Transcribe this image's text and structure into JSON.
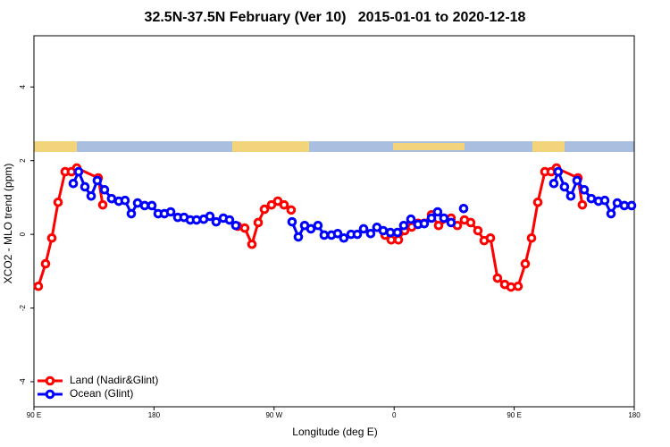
{
  "chart_data": {
    "type": "line",
    "title": "32.5N-37.5N February (Ver 10)   2015-01-01 to 2020-12-18",
    "x_label": "Longitude (deg E)",
    "y_label": "XCO2 - MLO trend (ppm)",
    "xlim": [
      90,
      540
    ],
    "ylim": [
      -4.68,
      5.39
    ],
    "xticks": [
      {
        "value": 90,
        "label": "90 E"
      },
      {
        "value": 180,
        "label": "180"
      },
      {
        "value": 270,
        "label": "90 W"
      },
      {
        "value": 360,
        "label": "0"
      },
      {
        "value": 450,
        "label": "90 E"
      },
      {
        "value": 540,
        "label": "180"
      }
    ],
    "yticks": [
      -4,
      -2,
      0,
      2,
      4
    ],
    "legend": "lower left",
    "series": [
      {
        "name": "Land (Nadir&Glint)",
        "color": "#ff0000",
        "x": [
          93.3,
          98.7,
          103.4,
          108.1,
          113.4,
          118.1,
          122.1,
          138.2,
          141.6,
          null,
          242.7,
          248,
          253.4,
          258.1,
          262.8,
          268.1,
          272.8,
          277.5,
          282.8,
          null,
          353.2,
          357.8,
          363.2,
          367.9,
          373.2,
          377.9,
          382.6,
          388,
          393.3,
          402.7,
          407.4,
          412.7,
          417.4,
          422.8,
          427.5,
          432.2,
          437.5,
          442.9,
          447.6,
          452.9,
          458.3,
          463,
          467.7,
          473,
          477.7,
          481.7,
          497.8,
          501.1
        ],
        "values": [
          -1.41,
          -0.8,
          -0.1,
          0.87,
          1.7,
          1.7,
          1.8,
          1.53,
          0.8,
          null,
          0.22,
          0.17,
          -0.27,
          0.32,
          0.68,
          0.8,
          0.9,
          0.8,
          0.66,
          null,
          -0.02,
          -0.15,
          -0.15,
          0.1,
          0.2,
          0.3,
          0.3,
          0.53,
          0.24,
          0.44,
          0.24,
          0.39,
          0.32,
          0.1,
          -0.17,
          -0.1,
          -1.19,
          -1.36,
          -1.43,
          -1.41,
          -0.8,
          -0.1,
          0.87,
          1.7,
          1.7,
          1.8,
          1.53,
          0.8
        ]
      },
      {
        "name": "Ocean (Glint)",
        "color": "#0000ff",
        "x": [
          119.5,
          123.5,
          128.2,
          132.9,
          137.5,
          142.9,
          148.2,
          153.6,
          158.3,
          163,
          167.7,
          173,
          178.4,
          183.1,
          187.8,
          192.5,
          197.8,
          202.5,
          207.2,
          211.9,
          217.2,
          221.9,
          226.6,
          232,
          236.6,
          241.3,
          null,
          283.5,
          288.2,
          292.9,
          297.6,
          302.9,
          307.6,
          313,
          317.7,
          322.3,
          327.7,
          332.4,
          337.1,
          342.4,
          347.1,
          351.8,
          357.2,
          362.5,
          367.2,
          372.6,
          377.9,
          382.6,
          388,
          392.6,
          397.3,
          402.7,
          null,
          412.1,
          null,
          479.7,
          483,
          487.7,
          492.4,
          497.1,
          502.5,
          507.8,
          513.2,
          517.9,
          522.6,
          527.3,
          532.6,
          538
        ],
        "values": [
          1.38,
          1.7,
          1.29,
          1.04,
          1.46,
          1.21,
          0.97,
          0.9,
          0.92,
          0.56,
          0.85,
          0.78,
          0.78,
          0.56,
          0.56,
          0.61,
          0.46,
          0.46,
          0.39,
          0.39,
          0.41,
          0.49,
          0.34,
          0.44,
          0.39,
          0.24,
          null,
          0.34,
          -0.07,
          0.24,
          0.15,
          0.24,
          -0.02,
          -0.02,
          0.02,
          -0.1,
          0,
          0,
          0.15,
          0.02,
          0.19,
          0.1,
          0.05,
          0.05,
          0.24,
          0.41,
          0.27,
          0.29,
          0.44,
          0.61,
          0.44,
          0.32,
          null,
          0.7,
          null,
          1.38,
          1.7,
          1.29,
          1.04,
          1.46,
          1.21,
          0.97,
          0.9,
          0.92,
          0.56,
          0.85,
          0.78,
          0.78
        ]
      }
    ]
  }
}
